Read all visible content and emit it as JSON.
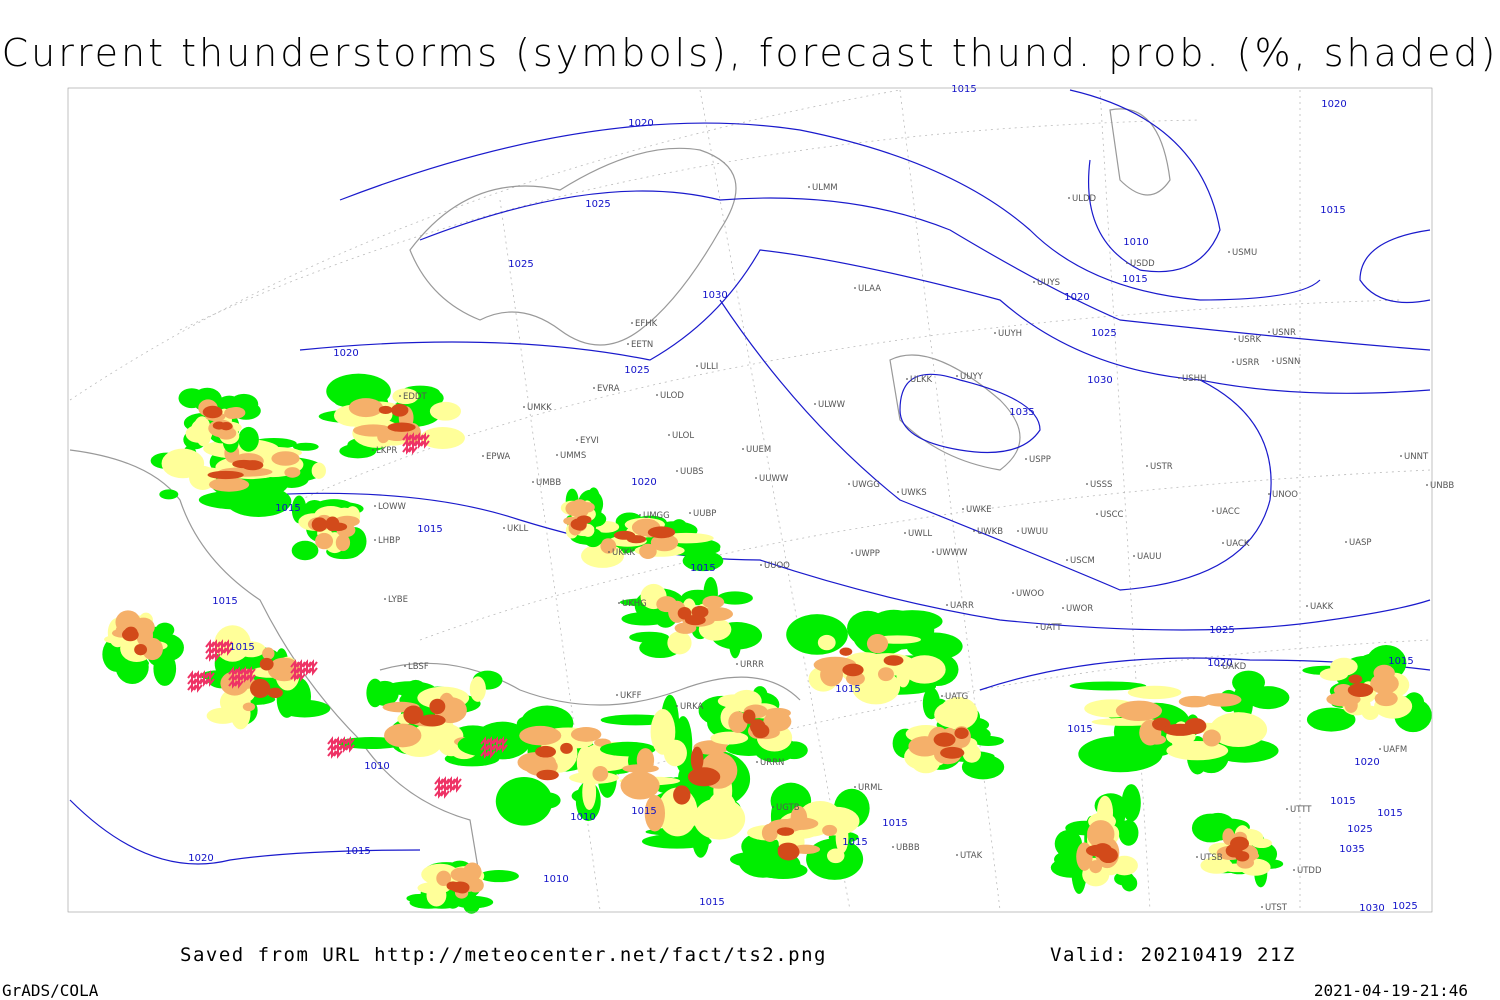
{
  "title": "Current thunderstorms (symbols), forecast thund. prob. (%, shaded)",
  "footer": {
    "source": "Saved from URL http://meteocenter.net/fact/ts2.png",
    "valid": "Valid: 20210419 21Z",
    "software": "GrADS/COLA",
    "timestamp": "2021-04-19-21:46"
  },
  "map": {
    "isobar_labels": [
      "1020",
      "1025",
      "1025",
      "1020",
      "1025",
      "1030",
      "1015",
      "1010",
      "1015",
      "1020",
      "1025",
      "1030",
      "1035",
      "1020",
      "1015",
      "1020",
      "1015",
      "1015",
      "1015",
      "1015",
      "1015",
      "1025",
      "1020",
      "1015",
      "1015",
      "1015",
      "1010",
      "1020",
      "1015",
      "1015",
      "1025",
      "1035",
      "1030",
      "1025",
      "1015",
      "1010",
      "1015",
      "1015",
      "1015",
      "1020",
      "1010",
      "1015"
    ],
    "stations": [
      "ULMM",
      "ULDD",
      "USDD",
      "USMU",
      "UUYS",
      "ULAA",
      "USRK",
      "USHH",
      "USNR",
      "USRR",
      "USNN",
      "UUYH",
      "EFHK",
      "EETN",
      "ULLI",
      "EVRA",
      "ULOD",
      "ULWW",
      "ULKK",
      "UUYY",
      "EDDT",
      "UMKK",
      "LKPR",
      "EPWA",
      "EYVI",
      "UMMS",
      "ULOL",
      "UUEM",
      "USPP",
      "USTR",
      "UNNT",
      "UNBB",
      "UMBB",
      "UUBS",
      "UUWW",
      "UWGG",
      "UWKS",
      "USSS",
      "UNOO",
      "LOWW",
      "UUBP",
      "UMGG",
      "UKLL",
      "UWKE",
      "UWKB",
      "UWUU",
      "USCC",
      "UACC",
      "LHBP",
      "UWLL",
      "UKKK",
      "UWPP",
      "UWWW",
      "UACK",
      "USCM",
      "UAUU",
      "UASP",
      "UUOO",
      "LYBE",
      "UKHG",
      "UARR",
      "UWOO",
      "UWOR",
      "UAKK",
      "UATT",
      "URRR",
      "LBSF",
      "UAKD",
      "UKFF",
      "UATG",
      "URKA",
      "URRN",
      "UTAK",
      "UTSB",
      "UTDD",
      "UTST",
      "UAFM",
      "UTTT",
      "UGTB",
      "URML",
      "UBBB"
    ]
  }
}
